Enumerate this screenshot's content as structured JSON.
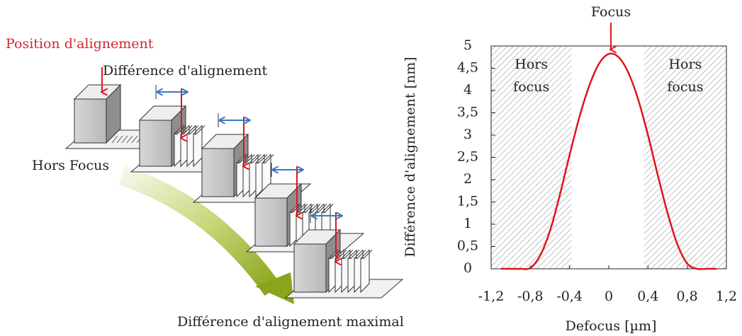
{
  "diagram": {
    "position_label": "Position d'alignement",
    "difference_label": "Différence d'alignement",
    "hors_focus_label": "Hors Focus",
    "maximal_label": "Différence d'alignement maximal"
  },
  "chart_data": {
    "type": "line",
    "annotation": "Focus",
    "region_labels": [
      [
        "Hors",
        "focus"
      ],
      [
        "Hors",
        "focus"
      ]
    ],
    "xlabel": "Defocus [µm]",
    "ylabel": "Différence d'alignement [nm]",
    "x": [
      -1.1,
      -1.0,
      -0.9,
      -0.8,
      -0.7,
      -0.6,
      -0.5,
      -0.4,
      -0.3,
      -0.2,
      -0.1,
      0,
      0.1,
      0.2,
      0.3,
      0.4,
      0.5,
      0.6,
      0.7,
      0.8,
      0.9,
      1.0,
      1.1
    ],
    "series": [
      {
        "color": "#e0141e",
        "values": [
          0,
          0,
          0,
          0.02,
          0.3,
          0.85,
          1.65,
          2.55,
          3.4,
          4.1,
          4.6,
          4.82,
          4.75,
          4.4,
          3.8,
          3.0,
          2.1,
          1.25,
          0.55,
          0.12,
          0,
          0,
          0
        ]
      }
    ],
    "shaded_regions": [
      [
        -1.2,
        -0.38
      ],
      [
        0.36,
        1.2
      ]
    ],
    "xlim": [
      -1.2,
      1.2
    ],
    "xticks": [
      {
        "value": -1.2,
        "label": "-1,2"
      },
      {
        "value": -0.8,
        "label": "-0,8"
      },
      {
        "value": -0.4,
        "label": "-0,4"
      },
      0,
      {
        "value": 0.4,
        "label": "0,4"
      },
      {
        "value": 0.8,
        "label": "0,8"
      },
      {
        "value": 1.2,
        "label": "1,2"
      }
    ],
    "ylim": [
      0,
      5
    ],
    "yticks": [
      0,
      {
        "value": 0.5,
        "label": "0,5"
      },
      1,
      {
        "value": 1.5,
        "label": "1,5"
      },
      2,
      {
        "value": 2.5,
        "label": "2,5"
      },
      3,
      {
        "value": 3.5,
        "label": "3,5"
      },
      4,
      {
        "value": 4.5,
        "label": "4,5"
      },
      5
    ],
    "grid": false
  }
}
